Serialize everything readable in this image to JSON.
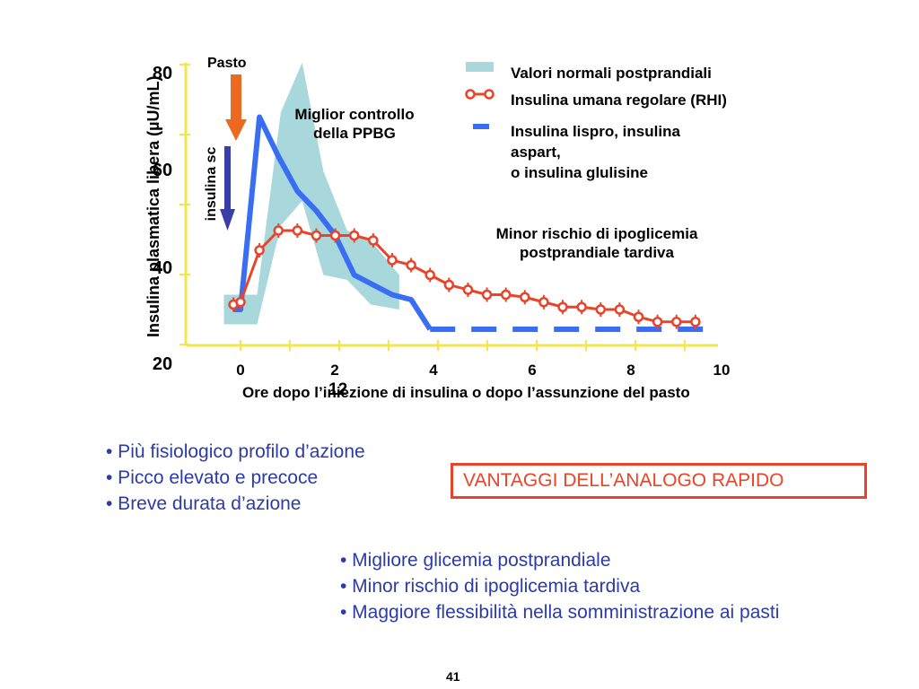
{
  "chart_data": {
    "type": "line",
    "ylabel": "Insulina plasmatica libera (µU/mL)",
    "xlabel": "Ore dopo l’iniezione di insulina o dopo l’assunzione del pasto",
    "xlabel_overlap": "12",
    "x_ticks": [
      "0",
      "2",
      "4",
      "6",
      "8",
      "10"
    ],
    "y_ticks": [
      "20",
      "40",
      "60",
      "80"
    ],
    "xlim": [
      -0.5,
      10
    ],
    "ylim": [
      20,
      80
    ],
    "series": [
      {
        "name": "Valori normali postprandiali",
        "kind": "band",
        "color": "#a8d8dc",
        "x": [
          -0.35,
          0.35,
          0.85,
          1.3,
          1.75,
          2.25,
          2.75,
          3.35
        ],
        "upper": [
          33,
          33,
          70,
          80,
          58,
          46,
          44,
          37
        ],
        "lower": [
          27,
          27,
          47,
          52,
          37,
          36,
          31,
          30
        ]
      },
      {
        "name": "Insulina umana regolare (RHI)",
        "kind": "line-markers",
        "color": "#e8442a",
        "x": [
          -0.15,
          0.0,
          0.4,
          0.8,
          1.2,
          1.6,
          2.0,
          2.4,
          2.8,
          3.2,
          3.6,
          4.0,
          4.4,
          4.8,
          5.2,
          5.6,
          6.0,
          6.4,
          6.8,
          7.2,
          7.6,
          8.0,
          8.4,
          8.8,
          9.2,
          9.6
        ],
        "y": [
          31,
          31.5,
          42,
          46,
          46,
          45,
          45,
          45,
          44,
          40,
          39,
          37,
          35,
          34,
          33,
          33,
          32.5,
          31.5,
          30.5,
          30.5,
          30,
          30,
          28.5,
          27.5,
          27.5,
          27.5
        ]
      },
      {
        "name": "Insulina lispro, insulina aspart, o insulina glulisine",
        "kind": "line",
        "color": "#3a6ef2",
        "x": [
          -0.15,
          0.0,
          0.4,
          0.8,
          1.2,
          1.6,
          2.0,
          2.4,
          2.8,
          3.2,
          3.6,
          4.0
        ],
        "y": [
          30,
          30,
          69,
          61,
          54,
          50,
          45,
          37,
          35,
          33,
          32,
          26
        ],
        "dashed_from_x": 4.0,
        "dashed_to_x": 9.8,
        "dashed_y": 26
      }
    ],
    "legend": [
      {
        "label_lines": [
          "Valori normali postprandiali"
        ]
      },
      {
        "label_lines": [
          "Insulina umana regolare (RHI)"
        ]
      },
      {
        "label_lines": [
          "Insulina lispro, insulina",
          "aspart,",
          "o insulina glulisine"
        ]
      }
    ],
    "annotations": {
      "pasto": "Pasto",
      "insulina_sc": "insulina sc",
      "miglior": [
        "Miglior controllo",
        "della PPBG"
      ],
      "minor": [
        "Minor rischio di ipoglicemia",
        "postprandiale tardiva"
      ]
    }
  },
  "bullets_left": [
    "• Più fisiologico profilo d’azione",
    "• Picco elevato e precoce",
    "• Breve durata d’azione"
  ],
  "vantaggi": "VANTAGGI DELL’ANALOGO RAPIDO",
  "bullets_right": [
    "• Migliore glicemia postprandiale",
    "• Minor rischio di ipoglicemia tardiva",
    "• Maggiore flessibilità nella somministrazione ai  pasti"
  ],
  "slide_number": "41"
}
